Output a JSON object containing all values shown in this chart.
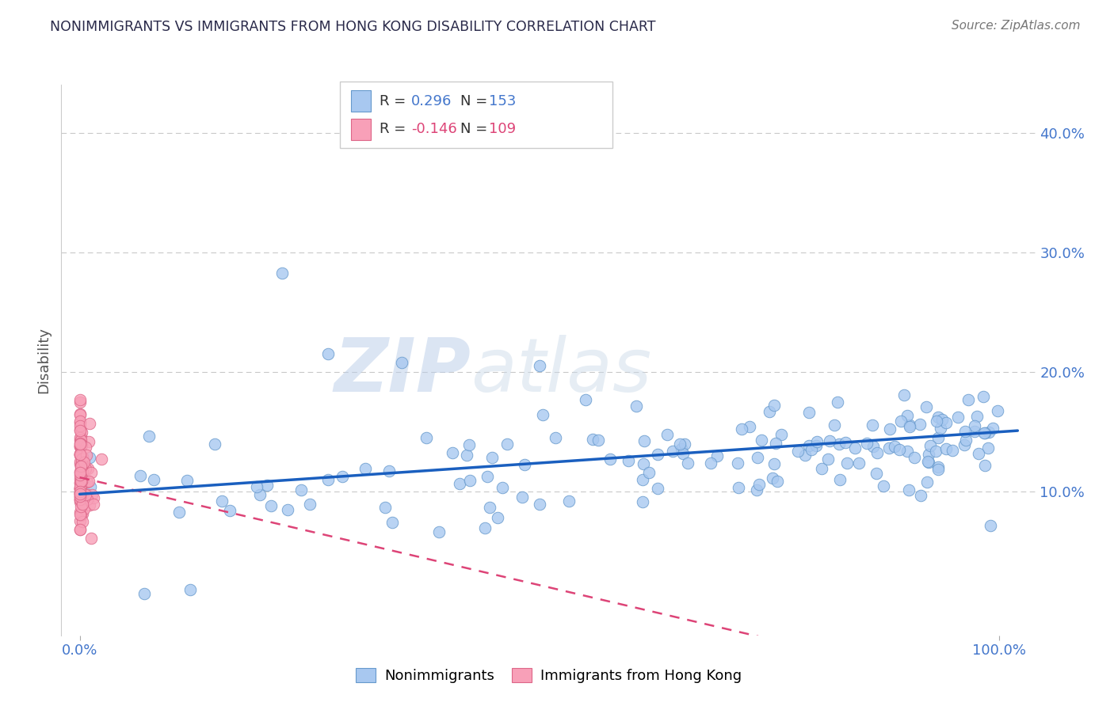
{
  "title": "NONIMMIGRANTS VS IMMIGRANTS FROM HONG KONG DISABILITY CORRELATION CHART",
  "source": "Source: ZipAtlas.com",
  "ylabel": "Disability",
  "scatter1_color": "#a8c8f0",
  "scatter1_edge": "#6699cc",
  "scatter2_color": "#f8a0b8",
  "scatter2_edge": "#dd6688",
  "line1_color": "#1a5fbf",
  "line2_color": "#dd4477",
  "tick_color": "#4477cc",
  "title_color": "#2a2a4a",
  "axis_label_color": "#555555",
  "source_color": "#777777",
  "grid_color": "#bbbbbb",
  "watermark_color": "#c8d8f0",
  "background_color": "#ffffff",
  "watermark_zip": "ZIP",
  "watermark_atlas": "atlas",
  "n1": 153,
  "n2": 109,
  "r1": 0.296,
  "r2": -0.146,
  "ylim_low": -0.02,
  "ylim_high": 0.44,
  "xlim_low": -0.02,
  "xlim_high": 1.04
}
